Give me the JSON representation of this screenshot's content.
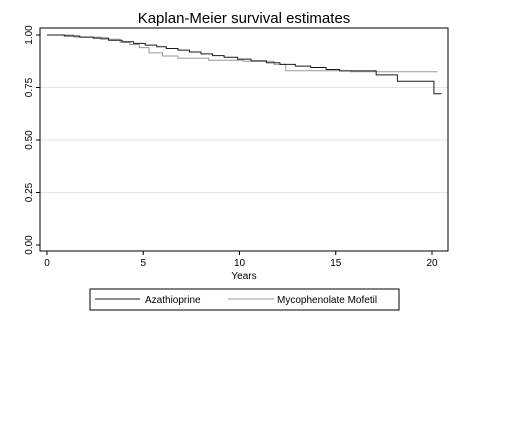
{
  "chart_data": {
    "type": "line",
    "title": "Kaplan-Meier survival estimates",
    "xlabel": "Years",
    "ylabel": "",
    "xlim": [
      0,
      21
    ],
    "ylim": [
      0,
      1
    ],
    "x_ticks": [
      0,
      5,
      10,
      15,
      20
    ],
    "x_tick_labels": [
      "0",
      "5",
      "10",
      "15",
      "20"
    ],
    "y_ticks": [
      0,
      0.25,
      0.5,
      0.75,
      1
    ],
    "y_tick_labels": [
      "0.00",
      "0.25",
      "0.50",
      "0.75",
      "1.00"
    ],
    "grid": "horizontal",
    "legend_position": "bottom",
    "series": [
      {
        "name": "Azathioprine",
        "color": "#1a1a1a",
        "step": true,
        "x": [
          0,
          0.9,
          1.7,
          2.4,
          3.2,
          3.9,
          4.5,
          5.1,
          5.7,
          6.2,
          6.8,
          7.4,
          8.0,
          8.6,
          9.2,
          9.9,
          10.6,
          11.4,
          12.1,
          12.9,
          13.7,
          14.5,
          15.2,
          17.1,
          18.2,
          20.1,
          20.5
        ],
        "y": [
          1.0,
          0.995,
          0.99,
          0.985,
          0.975,
          0.968,
          0.96,
          0.952,
          0.944,
          0.936,
          0.928,
          0.919,
          0.91,
          0.902,
          0.894,
          0.885,
          0.877,
          0.868,
          0.86,
          0.852,
          0.845,
          0.836,
          0.829,
          0.81,
          0.78,
          0.72,
          0.72
        ]
      },
      {
        "name": "Mycophenolate Mofetil",
        "color": "#9a9a9a",
        "step": true,
        "x": [
          0,
          1.4,
          2.8,
          3.8,
          4.3,
          4.8,
          5.3,
          6.0,
          6.8,
          7.6,
          8.4,
          9.3,
          10.2,
          11.0,
          11.8,
          12.4,
          13.2,
          14.0,
          14.9,
          15.8,
          16.8,
          17.8,
          18.8,
          20.3
        ],
        "y": [
          1.0,
          0.99,
          0.98,
          0.965,
          0.955,
          0.94,
          0.915,
          0.9,
          0.89,
          0.89,
          0.88,
          0.88,
          0.875,
          0.875,
          0.86,
          0.83,
          0.83,
          0.83,
          0.83,
          0.825,
          0.825,
          0.825,
          0.825,
          0.825
        ]
      }
    ]
  }
}
